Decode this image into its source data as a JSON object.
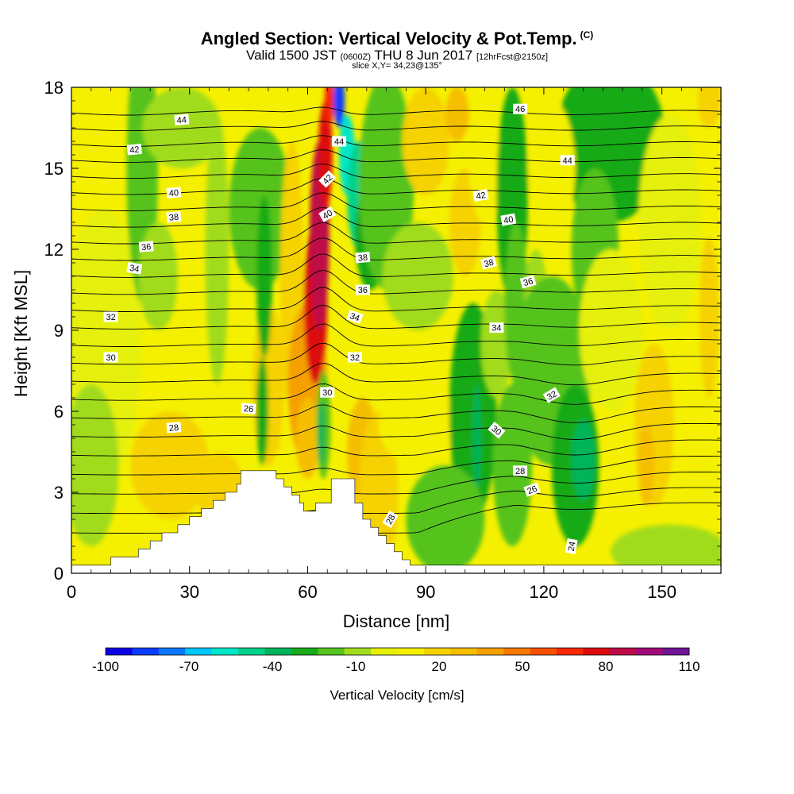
{
  "title": {
    "main": "Angled Section: Vertical Velocity & Pot.Temp.",
    "main_suffix": "(C)",
    "line2_a": "Valid 1500 JST",
    "line2_b": "(0600Z)",
    "line2_c": "THU 8 Jun 2017",
    "line2_d": "[12hrFcst@2150z]",
    "line3": "slice X,Y= 34,23@135°"
  },
  "chart_data": {
    "type": "heatmap",
    "xlabel": "Distance [nm]",
    "ylabel": "Height [Kft MSL]",
    "xlim": [
      0,
      165
    ],
    "ylim": [
      0,
      18
    ],
    "xticks": [
      0,
      30,
      60,
      90,
      120,
      150
    ],
    "yticks": [
      0,
      3,
      6,
      9,
      12,
      15,
      18
    ],
    "colorbar": {
      "label": "Vertical Velocity [cm/s]",
      "tick_labels": [
        "-100",
        "-70",
        "-40",
        "-10",
        "20",
        "50",
        "80",
        "110"
      ],
      "tick_values": [
        -100,
        -70,
        -40,
        -10,
        20,
        50,
        80,
        110
      ],
      "levels": [
        -100,
        -90,
        -80,
        -70,
        -60,
        -50,
        -40,
        -30,
        -20,
        -10,
        0,
        10,
        20,
        30,
        40,
        50,
        60,
        70,
        80,
        90,
        100,
        110
      ],
      "colors": [
        "#0a00e6",
        "#0a3cff",
        "#0a78ff",
        "#00c8ff",
        "#00e6c8",
        "#00d28c",
        "#00b45a",
        "#19aa19",
        "#55c31e",
        "#a0dc1e",
        "#e6f00a",
        "#f5f000",
        "#f5d200",
        "#f5be00",
        "#f5a000",
        "#f57800",
        "#f55000",
        "#f52800",
        "#dc0a0a",
        "#be0a46",
        "#a00a78",
        "#6e1496"
      ]
    },
    "terrain": [
      [
        0,
        0.3
      ],
      [
        10,
        0.3
      ],
      [
        10,
        0.6
      ],
      [
        17,
        0.6
      ],
      [
        17,
        0.9
      ],
      [
        20,
        0.9
      ],
      [
        20,
        1.2
      ],
      [
        23,
        1.2
      ],
      [
        23,
        1.5
      ],
      [
        27,
        1.5
      ],
      [
        27,
        1.8
      ],
      [
        30,
        1.8
      ],
      [
        30,
        2.1
      ],
      [
        33,
        2.1
      ],
      [
        33,
        2.4
      ],
      [
        36,
        2.4
      ],
      [
        36,
        2.7
      ],
      [
        39,
        2.7
      ],
      [
        39,
        3.0
      ],
      [
        42,
        3.0
      ],
      [
        42,
        3.3
      ],
      [
        43,
        3.3
      ],
      [
        43,
        3.8
      ],
      [
        52,
        3.8
      ],
      [
        52,
        3.5
      ],
      [
        54,
        3.5
      ],
      [
        54,
        3.2
      ],
      [
        56,
        3.2
      ],
      [
        56,
        2.9
      ],
      [
        58,
        2.9
      ],
      [
        58,
        2.6
      ],
      [
        59,
        2.6
      ],
      [
        59,
        2.3
      ],
      [
        62,
        2.3
      ],
      [
        62,
        2.6
      ],
      [
        66,
        2.6
      ],
      [
        66,
        3.5
      ],
      [
        72,
        3.5
      ],
      [
        72,
        2.6
      ],
      [
        74,
        2.6
      ],
      [
        74,
        2.0
      ],
      [
        76,
        2.0
      ],
      [
        76,
        1.7
      ],
      [
        78,
        1.7
      ],
      [
        78,
        1.4
      ],
      [
        80,
        1.4
      ],
      [
        80,
        1.1
      ],
      [
        82,
        1.1
      ],
      [
        82,
        0.8
      ],
      [
        84,
        0.8
      ],
      [
        84,
        0.5
      ],
      [
        86,
        0.5
      ],
      [
        86,
        0.3
      ],
      [
        165,
        0.3
      ]
    ],
    "blobs": [
      {
        "x": 8,
        "y": 8.5,
        "rx": 10,
        "ry": 5,
        "v": 5
      },
      {
        "x": 5,
        "y": 4,
        "rx": 7,
        "ry": 3,
        "v": -5
      },
      {
        "x": 18,
        "y": 15,
        "rx": 4,
        "ry": 5,
        "v": -20
      },
      {
        "x": 22,
        "y": 11,
        "rx": 5,
        "ry": 2,
        "v": -5
      },
      {
        "x": 28,
        "y": 16.5,
        "rx": 10,
        "ry": 1.5,
        "v": -10
      },
      {
        "x": 25,
        "y": 4,
        "rx": 10,
        "ry": 2,
        "v": 25
      },
      {
        "x": 38,
        "y": 3,
        "rx": 6,
        "ry": 1.5,
        "v": 25
      },
      {
        "x": 37,
        "y": 12,
        "rx": 3,
        "ry": 5,
        "v": -10
      },
      {
        "x": 48,
        "y": 13.5,
        "rx": 8,
        "ry": 3,
        "v": -20
      },
      {
        "x": 50,
        "y": 7,
        "rx": 4,
        "ry": 3,
        "v": 20
      },
      {
        "x": 49,
        "y": 11,
        "rx": 2,
        "ry": 3,
        "v": -30
      },
      {
        "x": 48.5,
        "y": 6,
        "rx": 1.5,
        "ry": 2,
        "v": -25
      },
      {
        "x": 56,
        "y": 11,
        "rx": 3,
        "ry": 5,
        "v": 20
      },
      {
        "x": 60,
        "y": 7,
        "rx": 5,
        "ry": 3,
        "v": 40
      },
      {
        "x": 62,
        "y": 10,
        "rx": 3,
        "ry": 3,
        "v": 80
      },
      {
        "x": 63,
        "y": 12.5,
        "rx": 2.5,
        "ry": 3.5,
        "v": 95
      },
      {
        "x": 64.5,
        "y": 15.5,
        "rx": 1.8,
        "ry": 2,
        "v": 85
      },
      {
        "x": 65.5,
        "y": 17.5,
        "rx": 1.2,
        "ry": 1,
        "v": 75
      },
      {
        "x": 60,
        "y": 5,
        "rx": 3,
        "ry": 1.5,
        "v": 30
      },
      {
        "x": 64,
        "y": 5.5,
        "rx": 1.8,
        "ry": 2,
        "v": -20
      },
      {
        "x": 63.5,
        "y": 5.2,
        "rx": 0.8,
        "ry": 1.2,
        "v": -35
      },
      {
        "x": 68,
        "y": 17.5,
        "rx": 1.4,
        "ry": 1,
        "v": -90
      },
      {
        "x": 70,
        "y": 15.5,
        "rx": 2,
        "ry": 1.5,
        "v": -55
      },
      {
        "x": 73,
        "y": 14,
        "rx": 3,
        "ry": 2,
        "v": -45
      },
      {
        "x": 76,
        "y": 12.5,
        "rx": 4,
        "ry": 2,
        "v": -30
      },
      {
        "x": 80,
        "y": 14.5,
        "rx": 7,
        "ry": 4,
        "v": -15
      },
      {
        "x": 88,
        "y": 11,
        "rx": 9,
        "ry": 2,
        "v": -5
      },
      {
        "x": 74,
        "y": 4.5,
        "rx": 4,
        "ry": 2,
        "v": 35
      },
      {
        "x": 78,
        "y": 3,
        "rx": 5,
        "ry": 3,
        "v": 25
      },
      {
        "x": 88,
        "y": 5.5,
        "rx": 10,
        "ry": 1.5,
        "v": 10
      },
      {
        "x": 90,
        "y": 16,
        "rx": 6,
        "ry": 2,
        "v": 25
      },
      {
        "x": 98,
        "y": 17,
        "rx": 3,
        "ry": 1,
        "v": 35
      },
      {
        "x": 100,
        "y": 13,
        "rx": 4,
        "ry": 2,
        "v": 20
      },
      {
        "x": 105,
        "y": 15,
        "rx": 4,
        "ry": 2,
        "v": 15
      },
      {
        "x": 102,
        "y": 6,
        "rx": 6,
        "ry": 4,
        "v": -25
      },
      {
        "x": 103,
        "y": 5,
        "rx": 1,
        "ry": 2,
        "v": -40
      },
      {
        "x": 95,
        "y": 2,
        "rx": 10,
        "ry": 2,
        "v": -15
      },
      {
        "x": 108,
        "y": 8.5,
        "rx": 4,
        "ry": 2,
        "v": -10
      },
      {
        "x": 112,
        "y": 14,
        "rx": 4,
        "ry": 4,
        "v": -25
      },
      {
        "x": 113,
        "y": 10,
        "rx": 3,
        "ry": 3,
        "v": -15
      },
      {
        "x": 112,
        "y": 4,
        "rx": 5,
        "ry": 3,
        "v": -20
      },
      {
        "x": 118,
        "y": 10,
        "rx": 3,
        "ry": 2,
        "v": -5
      },
      {
        "x": 122,
        "y": 7.5,
        "rx": 10,
        "ry": 3.5,
        "v": -15
      },
      {
        "x": 128,
        "y": 4,
        "rx": 6,
        "ry": 3,
        "v": -30
      },
      {
        "x": 130,
        "y": 4.2,
        "rx": 3,
        "ry": 1.5,
        "v": -40
      },
      {
        "x": 137,
        "y": 16,
        "rx": 14,
        "ry": 3,
        "v": -25
      },
      {
        "x": 133,
        "y": 12,
        "rx": 6,
        "ry": 3,
        "v": -15
      },
      {
        "x": 122,
        "y": 15,
        "rx": 6,
        "ry": 2.5,
        "v": 15
      },
      {
        "x": 137,
        "y": 9,
        "rx": 8,
        "ry": 3,
        "v": 5
      },
      {
        "x": 148,
        "y": 5.5,
        "rx": 5,
        "ry": 3,
        "v": 25
      },
      {
        "x": 146,
        "y": 4,
        "rx": 2,
        "ry": 1.5,
        "v": 35
      },
      {
        "x": 152,
        "y": 13,
        "rx": 8,
        "ry": 4,
        "v": 5
      },
      {
        "x": 152,
        "y": 0.8,
        "rx": 15,
        "ry": 1,
        "v": -10
      },
      {
        "x": 162,
        "y": 17.5,
        "rx": 3,
        "ry": 1,
        "v": 20
      },
      {
        "x": 162,
        "y": 9.5,
        "rx": 2.5,
        "ry": 3,
        "v": 20
      }
    ],
    "contour_labels": [
      {
        "text": "44",
        "x": 28,
        "y": 16.8,
        "angle": -5
      },
      {
        "text": "42",
        "x": 16,
        "y": 15.7,
        "angle": -5
      },
      {
        "text": "40",
        "x": 26,
        "y": 14.1,
        "angle": -5
      },
      {
        "text": "38",
        "x": 26,
        "y": 13.2,
        "angle": -5
      },
      {
        "text": "36",
        "x": 19,
        "y": 12.1,
        "angle": -5
      },
      {
        "text": "34",
        "x": 16,
        "y": 11.3,
        "angle": 10
      },
      {
        "text": "32",
        "x": 10,
        "y": 9.5,
        "angle": 0
      },
      {
        "text": "30",
        "x": 10,
        "y": 8.0,
        "angle": 0
      },
      {
        "text": "28",
        "x": 26,
        "y": 5.4,
        "angle": -5
      },
      {
        "text": "26",
        "x": 45,
        "y": 6.1,
        "angle": 5
      },
      {
        "text": "44",
        "x": 68,
        "y": 16.0,
        "angle": 0
      },
      {
        "text": "42",
        "x": 65,
        "y": 14.6,
        "angle": -45
      },
      {
        "text": "40",
        "x": 65,
        "y": 13.3,
        "angle": -30
      },
      {
        "text": "38",
        "x": 74,
        "y": 11.7,
        "angle": -5
      },
      {
        "text": "36",
        "x": 74,
        "y": 10.5,
        "angle": 0
      },
      {
        "text": "34",
        "x": 72,
        "y": 9.5,
        "angle": 20
      },
      {
        "text": "32",
        "x": 72,
        "y": 8.0,
        "angle": 0
      },
      {
        "text": "30",
        "x": 65,
        "y": 6.7,
        "angle": 0
      },
      {
        "text": "28",
        "x": 81,
        "y": 2.0,
        "angle": -60
      },
      {
        "text": "46",
        "x": 114,
        "y": 17.2,
        "angle": 0
      },
      {
        "text": "44",
        "x": 126,
        "y": 15.3,
        "angle": 0
      },
      {
        "text": "42",
        "x": 104,
        "y": 14.0,
        "angle": -10
      },
      {
        "text": "40",
        "x": 111,
        "y": 13.1,
        "angle": -10
      },
      {
        "text": "38",
        "x": 106,
        "y": 11.5,
        "angle": -15
      },
      {
        "text": "36",
        "x": 116,
        "y": 10.8,
        "angle": -15
      },
      {
        "text": "34",
        "x": 108,
        "y": 9.1,
        "angle": 0
      },
      {
        "text": "32",
        "x": 122,
        "y": 6.6,
        "angle": -30
      },
      {
        "text": "30",
        "x": 108,
        "y": 5.3,
        "angle": 40
      },
      {
        "text": "28",
        "x": 114,
        "y": 3.8,
        "angle": 0
      },
      {
        "text": "26",
        "x": 117,
        "y": 3.1,
        "angle": -20
      },
      {
        "text": "24",
        "x": 127,
        "y": 1.0,
        "angle": -80
      }
    ]
  }
}
